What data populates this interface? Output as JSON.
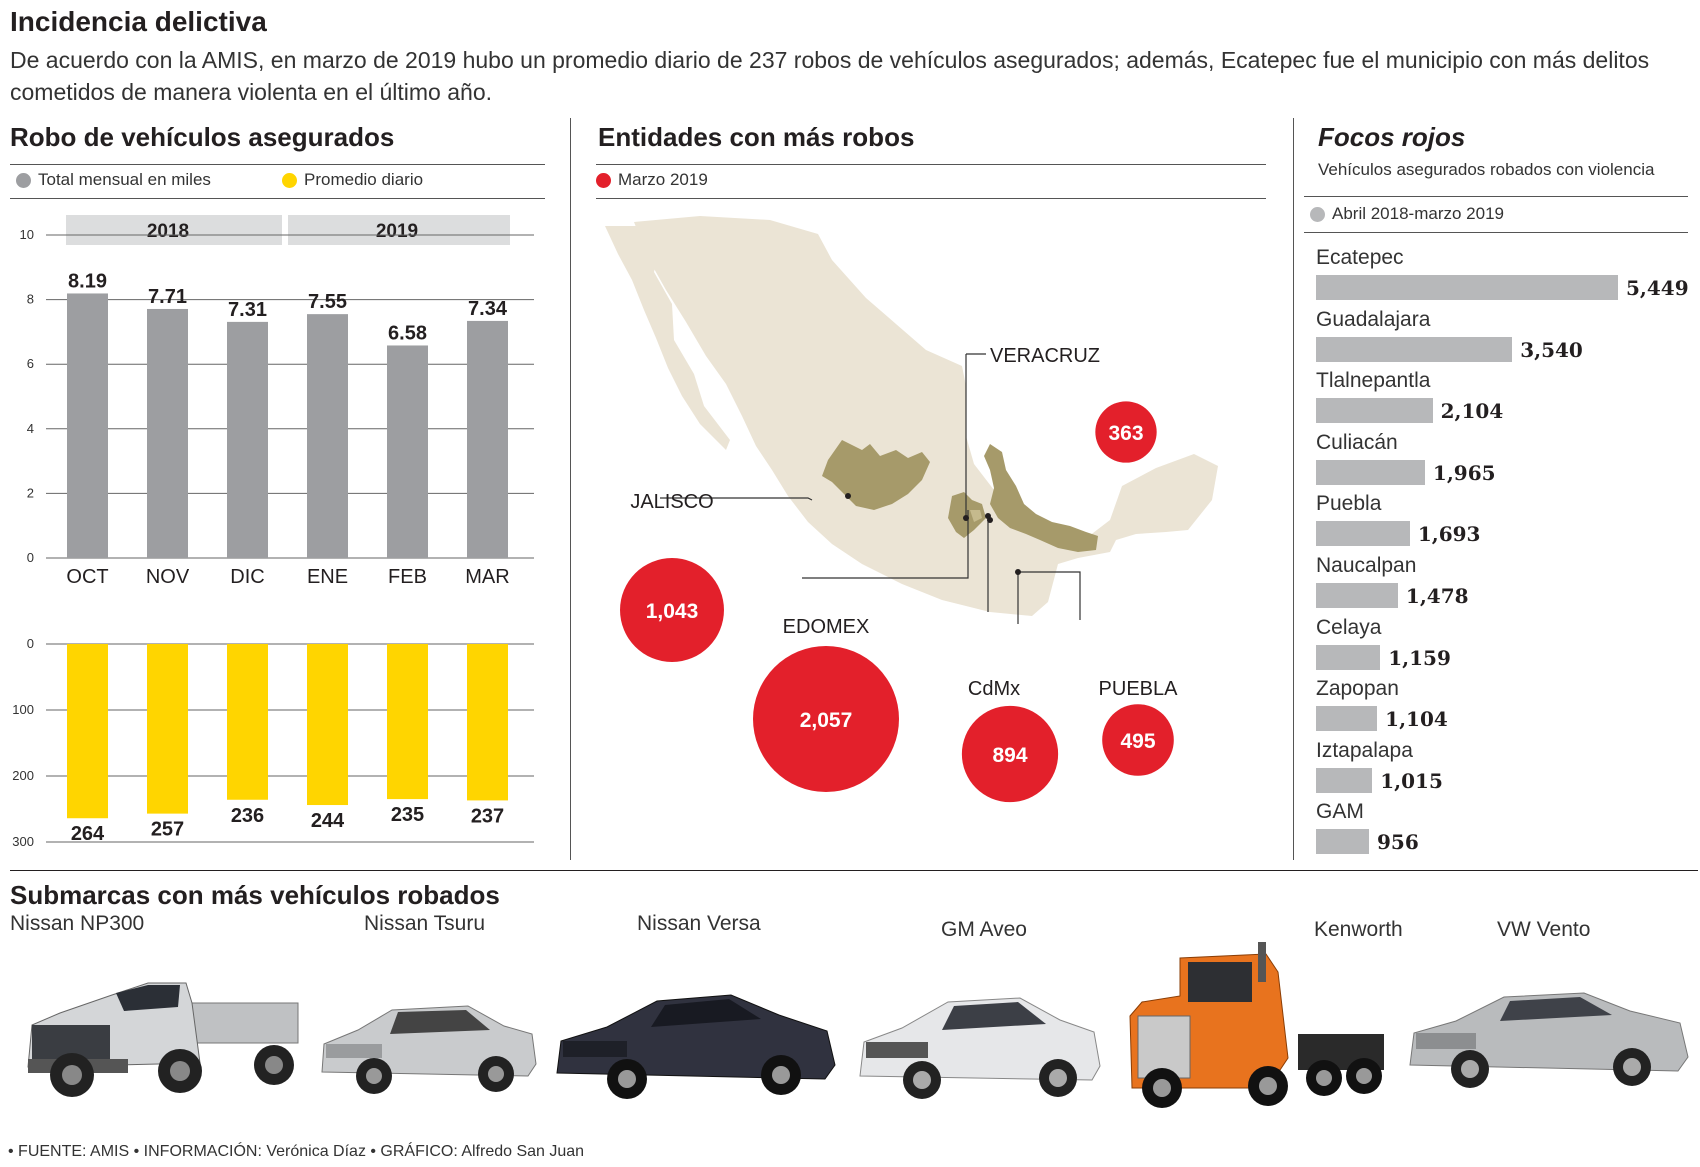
{
  "header": {
    "title": "Incidencia delictiva",
    "subtitle": "De acuerdo con la AMIS, en marzo de 2019 hubo un promedio diario de 237 robos de vehículos asegurados; además, Ecatepec fue el municipio con más delitos cometidos de manera violenta en el último año."
  },
  "robo": {
    "title": "Robo de vehículos asegurados",
    "legend_total": "Total mensual en miles",
    "legend_promedio": "Promedio diario",
    "year_2018": "2018",
    "year_2019": "2019"
  },
  "entidades": {
    "title": "Entidades con más robos",
    "legend": "Marzo 2019"
  },
  "focos": {
    "title": "Focos rojos",
    "subtitle": "Vehículos asegurados robados con violencia",
    "legend": "Abril 2018-marzo 2019"
  },
  "submarcas": {
    "title": "Submarcas con más vehículos robados",
    "cars": [
      {
        "label": "Nissan NP300",
        "icon": "pickup-truck-image"
      },
      {
        "label": "Nissan Tsuru",
        "icon": "sedan-image"
      },
      {
        "label": "Nissan Versa",
        "icon": "sedan-image"
      },
      {
        "label": "GM Aveo",
        "icon": "sedan-image"
      },
      {
        "label": "Kenworth",
        "icon": "semi-truck-image"
      },
      {
        "label": "VW Vento",
        "icon": "sedan-image"
      }
    ]
  },
  "footer": "• FUENTE: AMIS • INFORMACIÓN: Verónica Díaz • GRÁFICO: Alfredo San Juan",
  "colors": {
    "gray_bar": "#9d9ea1",
    "yellow_bar": "#ffd500",
    "red_bubble": "#e3202b",
    "map_land": "#ebe4d5",
    "highlight_state": "#a69a6a",
    "rank_bar": "#b7b8ba"
  },
  "chart_data": [
    {
      "type": "bar",
      "title": "Robo de vehículos asegurados",
      "categories": [
        "OCT",
        "NOV",
        "DIC",
        "ENE",
        "FEB",
        "MAR"
      ],
      "series": [
        {
          "name": "Total mensual en miles",
          "values": [
            8.19,
            7.71,
            7.31,
            7.55,
            6.58,
            7.34
          ],
          "labels": [
            "8.19",
            "7.71",
            "7.31",
            "7.55",
            "6.58",
            "7.34"
          ]
        }
      ],
      "ylim": [
        0,
        10
      ],
      "yticks": [
        "0",
        "2",
        "4",
        "6",
        "8",
        "10"
      ],
      "grid": true
    },
    {
      "type": "bar",
      "categories": [
        "OCT",
        "NOV",
        "DIC",
        "ENE",
        "FEB",
        "MAR"
      ],
      "series": [
        {
          "name": "Promedio diario",
          "values": [
            264,
            257,
            236,
            244,
            235,
            237
          ],
          "labels": [
            "264",
            "257",
            "236",
            "244",
            "235",
            "237"
          ]
        }
      ],
      "ylim": [
        0,
        300
      ],
      "yticks": [
        "0",
        "100",
        "200",
        "300"
      ],
      "inverted": true,
      "grid": true
    },
    {
      "type": "scatter",
      "title": "Entidades con más robos",
      "series": [
        {
          "name": "Marzo 2019",
          "points": [
            {
              "label": "VERACRUZ",
              "value": 363,
              "value_label": "363"
            },
            {
              "label": "JALISCO",
              "value": 1043,
              "value_label": "1,043"
            },
            {
              "label": "EDOMEX",
              "value": 2057,
              "value_label": "2,057"
            },
            {
              "label": "CdMx",
              "value": 894,
              "value_label": "894"
            },
            {
              "label": "PUEBLA",
              "value": 495,
              "value_label": "495"
            }
          ]
        }
      ]
    },
    {
      "type": "bar",
      "title": "Focos rojos",
      "categories": [
        "Ecatepec",
        "Guadalajara",
        "Tlalnepantla",
        "Culiacán",
        "Puebla",
        "Naucalpan",
        "Celaya",
        "Zapopan",
        "Iztapalapa",
        "GAM"
      ],
      "series": [
        {
          "name": "Abril 2018-marzo 2019",
          "values": [
            5449,
            3540,
            2104,
            1965,
            1693,
            1478,
            1159,
            1104,
            1015,
            956
          ],
          "labels": [
            "5,449",
            "3,540",
            "2,104",
            "1,965",
            "1,693",
            "1,478",
            "1,159",
            "1,104",
            "1,015",
            "956"
          ]
        }
      ],
      "orientation": "horizontal"
    }
  ]
}
